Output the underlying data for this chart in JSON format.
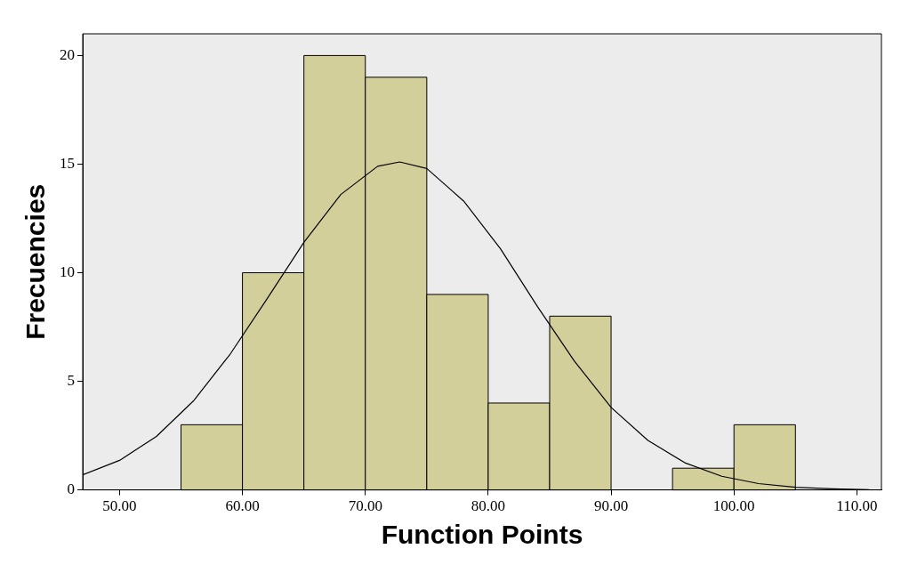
{
  "chart_data": {
    "type": "histogram",
    "xlabel": "Function Points",
    "ylabel": "Frecuencies",
    "bins": [
      55,
      60,
      65,
      70,
      75,
      80,
      85,
      90,
      95,
      100,
      105
    ],
    "values": [
      3,
      10,
      20,
      19,
      9,
      4,
      8,
      0,
      1,
      3
    ],
    "color": "#d3cf9a",
    "xlim": [
      47,
      112
    ],
    "xticks": [
      {
        "value": 50,
        "label": "50.00"
      },
      {
        "value": 60,
        "label": "60.00"
      },
      {
        "value": 70,
        "label": "70.00"
      },
      {
        "value": 80,
        "label": "80.00"
      },
      {
        "value": 90,
        "label": "90.00"
      },
      {
        "value": 100,
        "label": "100.00"
      },
      {
        "value": 110,
        "label": "110.00"
      }
    ],
    "ylim": [
      0,
      21
    ],
    "yticks": [
      0,
      5,
      10,
      15,
      20
    ],
    "grid": false,
    "legend": false,
    "series": [
      {
        "type": "line",
        "color": "#000000",
        "x": [
          47,
          50,
          53,
          56,
          59,
          62,
          65,
          68,
          71,
          72.8,
          75,
          78,
          81,
          84,
          87,
          90,
          93,
          96,
          99,
          102,
          105,
          108,
          111
        ],
        "values": [
          0.69,
          1.36,
          2.46,
          4.09,
          6.25,
          8.8,
          11.4,
          13.6,
          14.9,
          15.1,
          14.8,
          13.3,
          11.1,
          8.45,
          5.94,
          3.8,
          2.28,
          1.25,
          0.63,
          0.29,
          0.12,
          0.05,
          0.01
        ]
      }
    ]
  }
}
